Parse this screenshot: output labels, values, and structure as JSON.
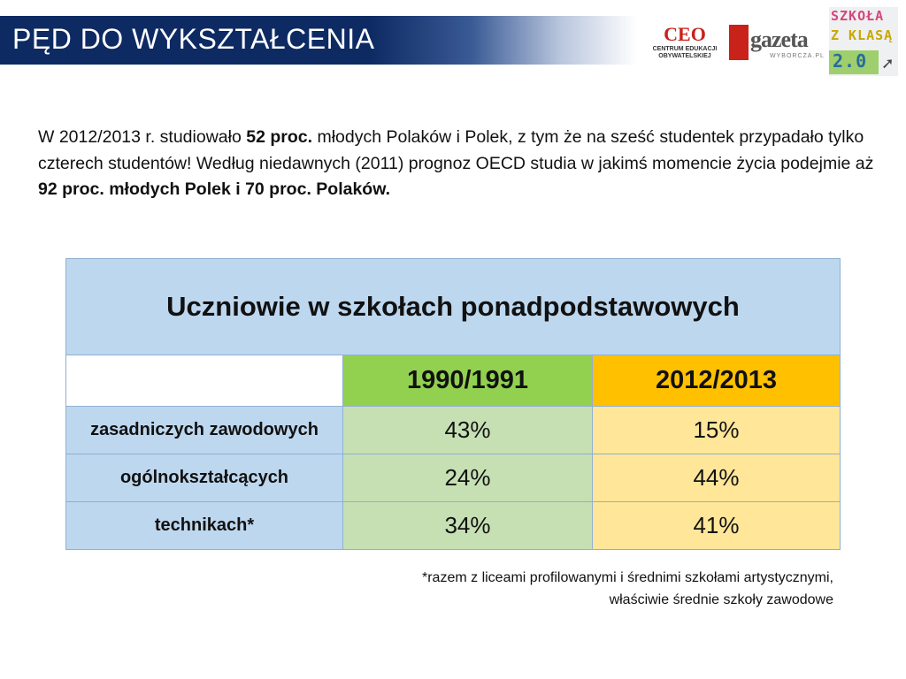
{
  "header": {
    "title": "PĘD DO WYKSZTAŁCENIA"
  },
  "logos": {
    "ceo": {
      "mark": "CEO",
      "sub1": "CENTRUM EDUKACJI",
      "sub2": "OBYWATELSKIEJ"
    },
    "gazeta": {
      "name": "gazeta",
      "sub": "WYBORCZA.PL"
    },
    "szkola": {
      "line1": "SZKOŁA",
      "line2": "Z KLASĄ",
      "line3": "2.0"
    }
  },
  "intro": {
    "p1": "W 2012/2013 r. studiowało ",
    "b1": "52 proc.",
    "p2": " młodych Polaków i Polek, z tym że na sześć studentek przypadało tylko czterech studentów! Według niedawnych (2011) prognoz OECD studia w jakimś momencie życia podejmie aż ",
    "b2": "92 proc. młodych Polek i 70 proc. Polaków."
  },
  "table": {
    "title": "Uczniowie w szkołach ponadpodstawowych",
    "headers": [
      "1990/1991",
      "2012/2013"
    ],
    "rows": [
      {
        "label": "zasadniczych zawodowych",
        "v1": "43%",
        "v2": "15%"
      },
      {
        "label": "ogólnokształcących",
        "v1": "24%",
        "v2": "44%"
      },
      {
        "label": "technikach*",
        "v1": "34%",
        "v2": "41%"
      }
    ]
  },
  "footnote": {
    "line1": "*razem z liceami profilowanymi i średnimi szkołami artystycznymi,",
    "line2": "właściwie średnie szkoły zawodowe"
  },
  "colors": {
    "title_bar": "#0d2a63",
    "table_blue": "#bdd7ee",
    "header_green": "#92d050",
    "header_orange": "#ffc000",
    "cell_green": "#c6e0b4",
    "cell_yellow": "#ffe699"
  }
}
